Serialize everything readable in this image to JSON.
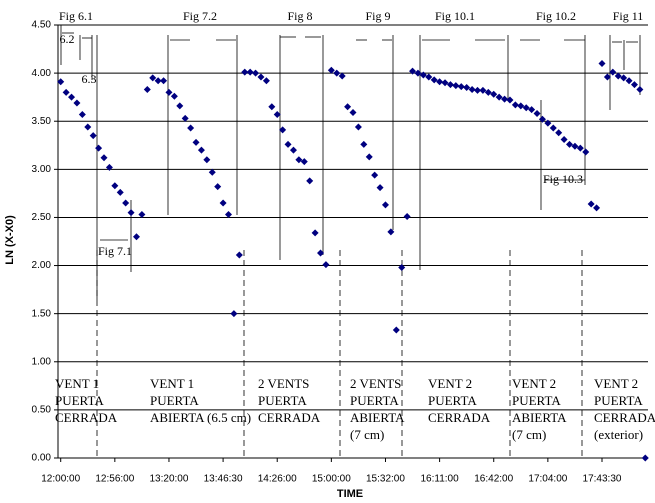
{
  "chart_data": {
    "type": "scatter",
    "x_label": "TIME",
    "y_label": "LN (X-X0)",
    "x": [
      0,
      1,
      2,
      3,
      4,
      5,
      6,
      7,
      8,
      9,
      10,
      11,
      12,
      13,
      14,
      15,
      16,
      17,
      18,
      19,
      20,
      21,
      22,
      23,
      24,
      25,
      26,
      27,
      28,
      29,
      30,
      31,
      32,
      33,
      34,
      35,
      36,
      37,
      38,
      39,
      40,
      41,
      42,
      43,
      44,
      45,
      46,
      47,
      48,
      49,
      50,
      51,
      52,
      53,
      54,
      55,
      56,
      57,
      58,
      59,
      60,
      61,
      62,
      63,
      64,
      65,
      66,
      67,
      68,
      69,
      70,
      71,
      72,
      73,
      74,
      75,
      76,
      77,
      78,
      79,
      80,
      81,
      82,
      83,
      84,
      85,
      86,
      87,
      88,
      89,
      90,
      91,
      92,
      93,
      94,
      95,
      96,
      97,
      98,
      99,
      100,
      101,
      102,
      103,
      104,
      105,
      106,
      107,
      108
    ],
    "series": [
      {
        "color": "#000080",
        "values": [
          3.91,
          3.8,
          3.75,
          3.69,
          3.57,
          3.44,
          3.35,
          3.22,
          3.12,
          3.02,
          2.83,
          2.76,
          2.65,
          2.55,
          2.3,
          2.53,
          3.83,
          3.95,
          3.92,
          3.92,
          3.8,
          3.76,
          3.66,
          3.53,
          3.43,
          3.28,
          3.2,
          3.1,
          2.97,
          2.82,
          2.65,
          2.53,
          1.5,
          2.11,
          4.01,
          4.01,
          4.0,
          3.96,
          3.92,
          3.65,
          3.57,
          3.41,
          3.26,
          3.2,
          3.1,
          3.08,
          2.88,
          2.34,
          2.13,
          2.01,
          4.03,
          4.0,
          3.97,
          3.65,
          3.59,
          3.44,
          3.26,
          3.13,
          2.94,
          2.81,
          2.63,
          2.35,
          1.33,
          1.98,
          2.51,
          4.02,
          4.0,
          3.98,
          3.96,
          3.93,
          3.91,
          3.9,
          3.88,
          3.87,
          3.86,
          3.85,
          3.83,
          3.82,
          3.82,
          3.8,
          3.78,
          3.75,
          3.73,
          3.72,
          3.67,
          3.66,
          3.64,
          3.62,
          3.58,
          3.52,
          3.48,
          3.43,
          3.38,
          3.31,
          3.26,
          3.24,
          3.22,
          3.18,
          2.64,
          2.6,
          4.1,
          3.96,
          4.01,
          3.97,
          3.95,
          3.92,
          3.88,
          3.83,
          0.0
        ]
      }
    ],
    "xlim": [
      -0.5,
      108.5
    ],
    "xticks": [
      {
        "value": 0,
        "label": "12:00:00"
      },
      {
        "value": 10,
        "label": "12:56:00"
      },
      {
        "value": 20,
        "label": "13:20:00"
      },
      {
        "value": 30,
        "label": "13:46:30"
      },
      {
        "value": 40,
        "label": "14:26:00"
      },
      {
        "value": 50,
        "label": "15:00:00"
      },
      {
        "value": 60,
        "label": "15:32:00"
      },
      {
        "value": 70,
        "label": "16:11:00"
      },
      {
        "value": 80,
        "label": "16:42:00"
      },
      {
        "value": 90,
        "label": "17:04:00"
      },
      {
        "value": 100,
        "label": "17:43:30"
      }
    ],
    "ylim": [
      0,
      4.5
    ],
    "yticks": [
      {
        "value": 0,
        "label": "0.00"
      },
      {
        "value": 0.5,
        "label": "0.50"
      },
      {
        "value": 1,
        "label": "1.00"
      },
      {
        "value": 1.5,
        "label": "1.50"
      },
      {
        "value": 2,
        "label": "2.00"
      },
      {
        "value": 2.5,
        "label": "2.50"
      },
      {
        "value": 3,
        "label": "3.00"
      },
      {
        "value": 3.5,
        "label": "3.50"
      },
      {
        "value": 4,
        "label": "4.00"
      },
      {
        "value": 4.5,
        "label": "4.50"
      }
    ],
    "grid": true,
    "annotations": [
      "Fig 6.1",
      "6.2",
      "6.3",
      "Fig 7.1",
      "Fig 7.2",
      "Fig 8",
      "Fig 9",
      "Fig 10.1",
      "Fig 10.2",
      "Fig 10.3",
      "Fig 11"
    ],
    "regions": [
      [
        "VENT 1",
        "PUERTA",
        "CERRADA"
      ],
      [
        "VENT 1",
        "PUERTA",
        "ABIERTA (6.5 cm)"
      ],
      [
        "2 VENTS",
        "PUERTA",
        "CERRADA"
      ],
      [
        "2 VENTS",
        "PUERTA",
        "ABIERTA",
        "(7 cm)"
      ],
      [
        "VENT 2",
        "PUERTA",
        "CERRADA"
      ],
      [
        "VENT 2",
        "PUERTA",
        "ABIERTA",
        "(7 cm)"
      ],
      [
        "VENT 2",
        "PUERTA",
        "CERRADA",
        "(exterior)"
      ]
    ]
  }
}
